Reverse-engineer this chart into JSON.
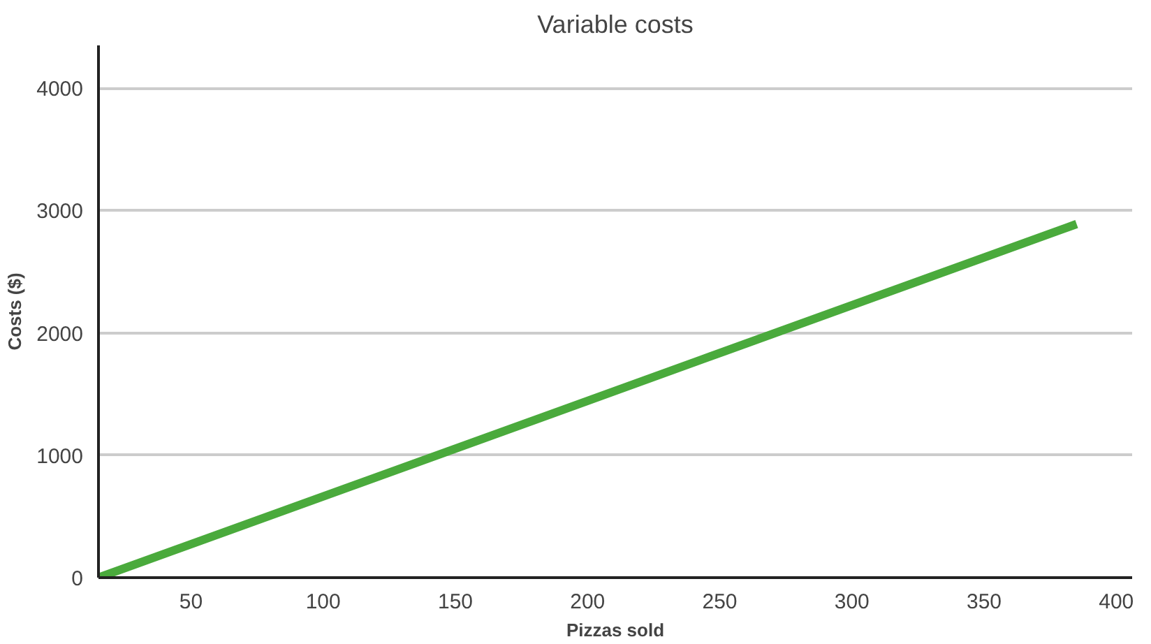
{
  "chart_data": {
    "type": "line",
    "title": "Variable costs",
    "xlabel": "Pizzas sold",
    "ylabel": "Costs ($)",
    "x": [
      15,
      385
    ],
    "series": [
      {
        "color": "#4aaa3c",
        "values": [
          0,
          2890
        ]
      }
    ],
    "xlim": [
      15,
      406
    ],
    "xticks": [
      50,
      100,
      150,
      200,
      250,
      300,
      350,
      400
    ],
    "ylim": [
      0,
      4350
    ],
    "yticks": [
      0,
      1000,
      2000,
      3000,
      4000
    ],
    "grid": "y",
    "marker": "none",
    "line_style": "solid"
  }
}
